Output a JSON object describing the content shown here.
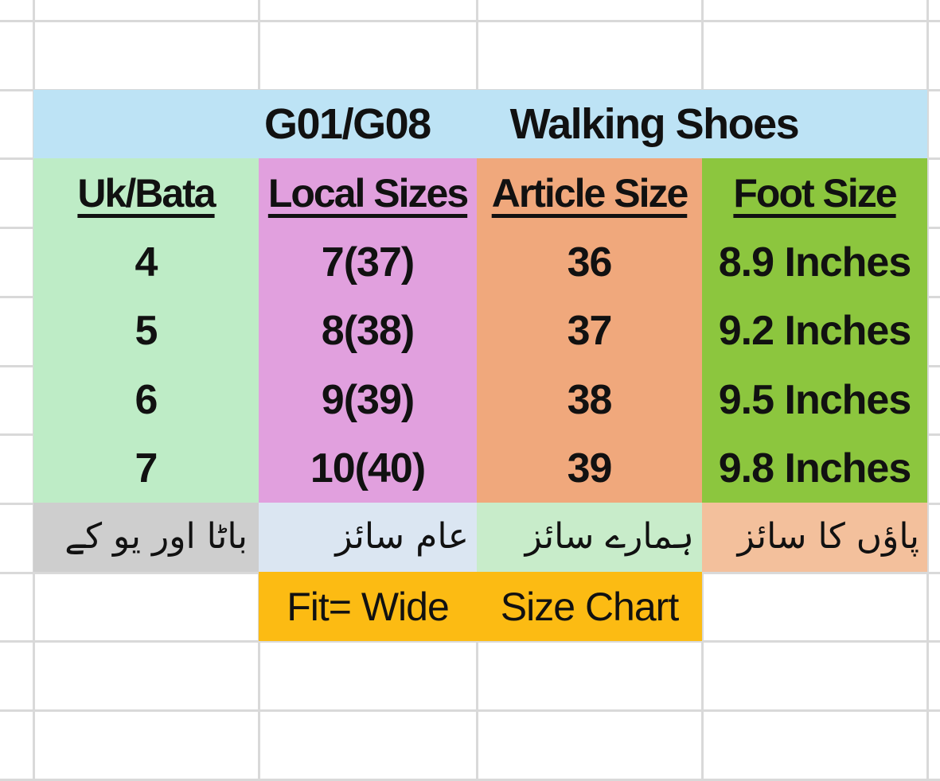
{
  "sheet": {
    "title": {
      "product_code": "G01/G08",
      "product_name": "Walking Shoes"
    },
    "columns": [
      {
        "label": "Uk/Bata",
        "urdu_label": "باٹا اور یو کے",
        "header_bg": "#beecc6",
        "body_bg": "#beecc6",
        "urdu_bg": "#cecece"
      },
      {
        "label": "Local Sizes",
        "urdu_label": "عام سائز",
        "header_bg": "#e1a0de",
        "body_bg": "#e1a0de",
        "urdu_bg": "#dbe6f2"
      },
      {
        "label": "Article Size",
        "urdu_label": "ہمارے سائز",
        "header_bg": "#f0a87c",
        "body_bg": "#f0a87c",
        "urdu_bg": "#c8ecca"
      },
      {
        "label": "Foot Size",
        "urdu_label": "پاؤں کا سائز",
        "header_bg": "#8cc63e",
        "body_bg": "#8cc63e",
        "urdu_bg": "#f3c09c"
      }
    ],
    "rows": [
      [
        "4",
        "7(37)",
        "36",
        "8.9 Inches"
      ],
      [
        "5",
        "8(38)",
        "37",
        "9.2 Inches"
      ],
      [
        "6",
        "9(39)",
        "38",
        "9.5 Inches"
      ],
      [
        "7",
        "10(40)",
        "39",
        "9.8 Inches"
      ]
    ],
    "footer": {
      "fit_label": "Fit= Wide",
      "chart_label": "Size Chart",
      "bg": "#fcbb13"
    },
    "colors": {
      "title_bg": "#bde3f5",
      "gridline": "#d9d9d9",
      "text": "#111111"
    }
  }
}
